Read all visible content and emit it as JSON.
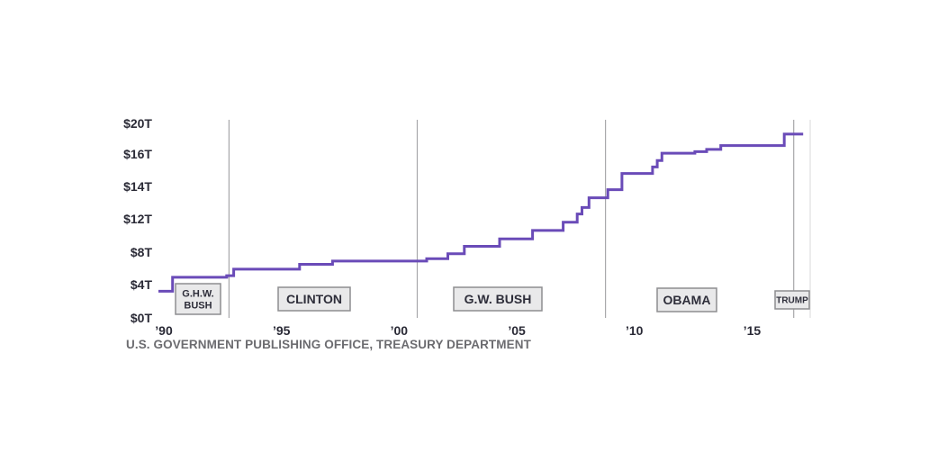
{
  "chart_data": {
    "type": "line",
    "title": "",
    "xlabel": "",
    "ylabel": "",
    "xlim": [
      1990,
      2017.7
    ],
    "y_tick_labels": [
      "$0T",
      "$4T",
      "$8T",
      "$12T",
      "$14T",
      "$16T",
      "$20T"
    ],
    "x_tick_labels": [
      {
        "x": 1990,
        "label": "’90"
      },
      {
        "x": 1995,
        "label": "’95"
      },
      {
        "x": 2000,
        "label": "’00"
      },
      {
        "x": 2005,
        "label": "’05"
      },
      {
        "x": 2010,
        "label": "’10"
      },
      {
        "x": 2015,
        "label": "’15"
      }
    ],
    "eras": [
      {
        "name": "G.H.W. BUSH",
        "lines": [
          "G.H.W.",
          "BUSH"
        ],
        "start": 1990,
        "end": 1993.0
      },
      {
        "name": "CLINTON",
        "lines": [
          "CLINTON"
        ],
        "start": 1993.0,
        "end": 2001.0
      },
      {
        "name": "G.W. BUSH",
        "lines": [
          "G.W. BUSH"
        ],
        "start": 2001.0,
        "end": 2009.0
      },
      {
        "name": "OBAMA",
        "lines": [
          "OBAMA"
        ],
        "start": 2009.0,
        "end": 2017.0
      },
      {
        "name": "TRUMP",
        "lines": [
          "TRUMP"
        ],
        "start": 2017.0,
        "end": 2017.7
      }
    ],
    "series": [
      {
        "color": "#6a4bb8",
        "step": true,
        "points": [
          [
            1990.0,
            3.2
          ],
          [
            1990.6,
            4.9
          ],
          [
            1992.9,
            5.1
          ],
          [
            1993.2,
            5.9
          ],
          [
            1996.0,
            6.5
          ],
          [
            1997.4,
            6.9
          ],
          [
            2001.4,
            7.2
          ],
          [
            2002.3,
            7.8
          ],
          [
            2003.0,
            8.7
          ],
          [
            2004.5,
            9.6
          ],
          [
            2005.9,
            10.6
          ],
          [
            2007.2,
            11.6
          ],
          [
            2007.8,
            12.3
          ],
          [
            2008.0,
            12.7
          ],
          [
            2008.3,
            13.3
          ],
          [
            2009.1,
            13.8
          ],
          [
            2009.7,
            14.8
          ],
          [
            2011.0,
            15.2
          ],
          [
            2011.2,
            15.6
          ],
          [
            2011.4,
            16.1
          ],
          [
            2012.8,
            16.3
          ],
          [
            2013.3,
            16.6
          ],
          [
            2013.9,
            17.1
          ],
          [
            2016.6,
            18.6
          ],
          [
            2017.4,
            18.6
          ]
        ]
      }
    ]
  },
  "source": "U.S. GOVERNMENT PUBLISHING OFFICE, TREASURY DEPARTMENT"
}
